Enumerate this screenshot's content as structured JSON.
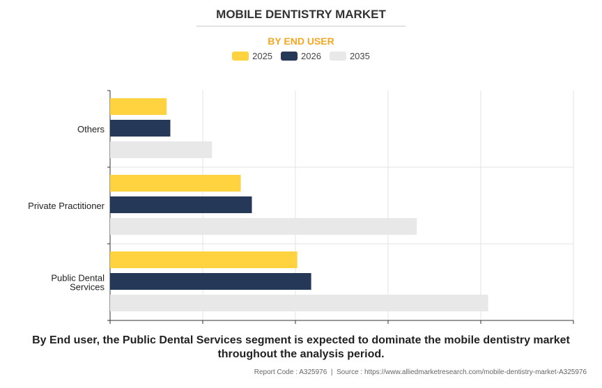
{
  "title": "MOBILE DENTISTRY MARKET",
  "subtitle": "BY END USER",
  "description": "By End user, the Public Dental Services segment is expected to dominate the mobile dentistry market throughout the analysis period.",
  "footer": "Report Code : A325976  |  Source : https://www.alliedmarketresearch.com/mobile-dentistry-market-A325976",
  "chart_data": {
    "type": "bar",
    "orientation": "horizontal",
    "categories": [
      "Others",
      "Private Practitioner",
      "Public Dental Services"
    ],
    "category_label_lines": [
      [
        "Others"
      ],
      [
        "Private Practitioner"
      ],
      [
        "Public Dental",
        "Services"
      ]
    ],
    "series": [
      {
        "name": "2025",
        "color": "#ffd23f",
        "values": [
          0.61,
          1.41,
          2.02
        ]
      },
      {
        "name": "2026",
        "color": "#253858",
        "values": [
          0.65,
          1.53,
          2.17
        ]
      },
      {
        "name": "2035",
        "color": "#e8e8e8",
        "values": [
          1.1,
          3.31,
          4.08
        ]
      }
    ],
    "xlim": [
      0,
      5
    ],
    "grid": true,
    "tick_labels_shown": false,
    "legend_position": "top"
  }
}
